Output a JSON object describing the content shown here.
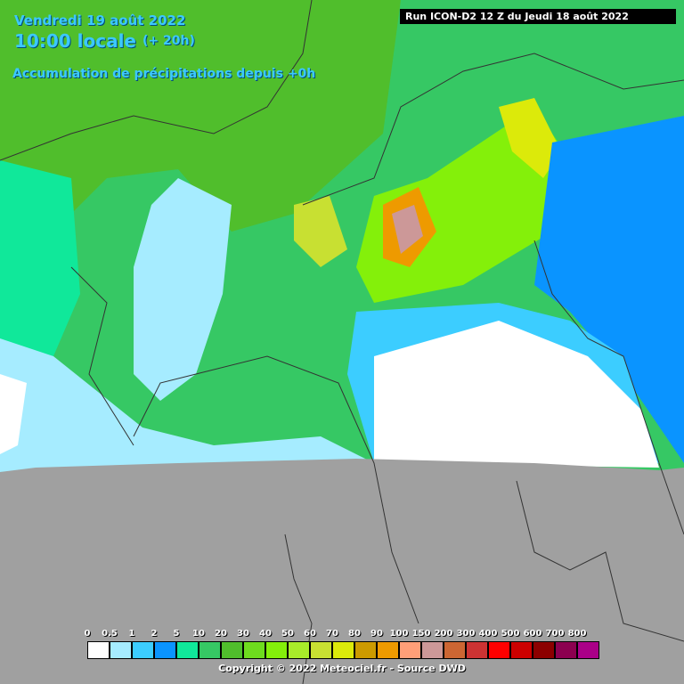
{
  "header": {
    "date": "Vendredi 19 août 2022",
    "time": "10:00 locale",
    "lead": "(+ 20h)",
    "subtitle": "Accumulation de précipitations depuis +0h"
  },
  "run_label": "Run ICON-D2 12 Z du Jeudi 18 août 2022",
  "legend": {
    "labels": [
      0,
      0.5,
      1,
      2,
      5,
      10,
      20,
      30,
      40,
      50,
      60,
      70,
      80,
      90,
      100,
      150,
      200,
      300,
      400,
      500,
      600,
      700,
      800
    ],
    "colors": [
      "#ffffff",
      "#a6ecff",
      "#3ccdff",
      "#0a94ff",
      "#10e89a",
      "#36c864",
      "#50be2c",
      "#6edc1e",
      "#84f00a",
      "#a8ec2a",
      "#c8e032",
      "#dcea0a",
      "#cc9a00",
      "#ee9a00",
      "#ff9f78",
      "#cc9898",
      "#cc6633",
      "#cc3333",
      "#ff0000",
      "#cc0000",
      "#8c0000",
      "#8c0050",
      "#aa0088"
    ]
  },
  "copyright": "Copyright © 2022 Meteociel.fr - Source DWD"
}
